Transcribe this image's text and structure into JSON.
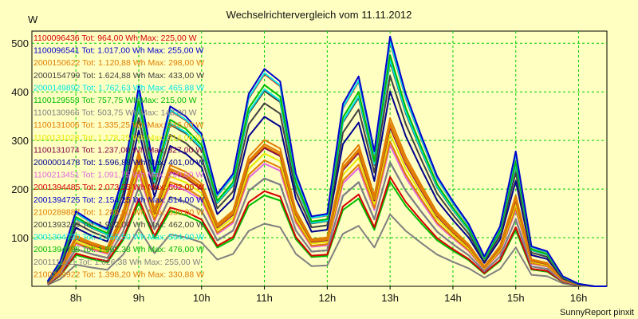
{
  "chart_data": {
    "type": "line",
    "title": "Wechselrichtervergleich vom 11.11.2012",
    "ylabel": "W",
    "footer": "SunnyReport pinxit",
    "ylim": [
      0,
      525
    ],
    "xlim": [
      7.3,
      16.45
    ],
    "xticks": [
      {
        "x": 8,
        "label": "8h"
      },
      {
        "x": 9,
        "label": "9h"
      },
      {
        "x": 10,
        "label": "10h"
      },
      {
        "x": 11,
        "label": "11h"
      },
      {
        "x": 12,
        "label": "12h"
      },
      {
        "x": 13,
        "label": "13h"
      },
      {
        "x": 14,
        "label": "14h"
      },
      {
        "x": 15,
        "label": "15h"
      },
      {
        "x": 16,
        "label": "16h"
      }
    ],
    "yticks": [
      100,
      200,
      300,
      400,
      500
    ],
    "grid": true,
    "x": [
      7.55,
      7.75,
      8.0,
      8.25,
      8.5,
      8.75,
      9.0,
      9.25,
      9.5,
      9.75,
      10.0,
      10.25,
      10.5,
      10.75,
      11.0,
      11.25,
      11.5,
      11.75,
      12.0,
      12.25,
      12.5,
      12.75,
      13.0,
      13.25,
      13.5,
      13.75,
      14.0,
      14.25,
      14.5,
      14.75,
      15.0,
      15.25,
      15.5,
      15.75,
      16.0,
      16.25,
      16.45
    ],
    "base_shape": [
      0.02,
      0.1,
      0.3,
      0.26,
      0.23,
      0.44,
      0.8,
      0.46,
      0.72,
      0.68,
      0.61,
      0.37,
      0.45,
      0.77,
      0.87,
      0.82,
      0.45,
      0.28,
      0.29,
      0.73,
      0.84,
      0.54,
      1.0,
      0.77,
      0.6,
      0.44,
      0.34,
      0.25,
      0.12,
      0.24,
      0.54,
      0.16,
      0.14,
      0.04,
      0.01,
      0.0,
      0.0
    ],
    "series": [
      {
        "name": "1100096436",
        "tot": "964,00 Wh",
        "max": "225,00 W",
        "color": "#d40000",
        "peak": 225
      },
      {
        "name": "1100096541",
        "tot": "1.017,00 Wh",
        "max": "255,00 W",
        "color": "#0000cc",
        "peak": 255
      },
      {
        "name": "2000150622",
        "tot": "1.120,88 Wh",
        "max": "298,00 W",
        "color": "#e07c00",
        "peak": 298
      },
      {
        "name": "2000154799",
        "tot": "1.624,88 Wh",
        "max": "433,00 W",
        "color": "#404040",
        "peak": 433
      },
      {
        "name": "2000149892",
        "tot": "1.762,63 Wh",
        "max": "465,88 W",
        "color": "#00e5e5",
        "peak": 466
      },
      {
        "name": "1100129553",
        "tot": "757,75 Wh",
        "max": "215,00 W",
        "color": "#00bb00",
        "peak": 215
      },
      {
        "name": "1100130966",
        "tot": "503,75 Wh",
        "max": "148,00 W",
        "color": "#808080",
        "peak": 148
      },
      {
        "name": "1100131006",
        "tot": "1.335,25 Wh",
        "max": "346,00 W",
        "color": "#e07c00",
        "peak": 346
      },
      {
        "name": "1100131028",
        "tot": "1.178,25 Wh",
        "max": "314,00 W",
        "color": "#e8e800",
        "peak": 314
      },
      {
        "name": "1100131074",
        "tot": "1.237,00 Wh",
        "max": "327,00 W",
        "color": "#800040",
        "peak": 327
      },
      {
        "name": "2000001478",
        "tot": "1.596,88 Wh",
        "max": "401,00 W",
        "color": "#000090",
        "peak": 401
      },
      {
        "name": "1100213451",
        "tot": "1.091,75 Wh",
        "max": "290,00 W",
        "color": "#e066e0",
        "peak": 290
      },
      {
        "name": "2001394485",
        "tot": "2.073,25 Wh",
        "max": "502,00 W",
        "color": "#d40000",
        "peak": 502
      },
      {
        "name": "2001394725",
        "tot": "2.154,25 Wh",
        "max": "514,00 W",
        "color": "#0000cc",
        "peak": 514
      },
      {
        "name": "2100289887",
        "tot": "1.288,00 Wh",
        "max": "336,00 W",
        "color": "#e07c00",
        "peak": 336
      },
      {
        "name": "2001393249",
        "tot": "1.902,00 Wh",
        "max": "462,00 W",
        "color": "#404040",
        "peak": 462
      },
      {
        "name": "2001394730",
        "tot": "1.956,50 Wh",
        "max": "504,00 W",
        "color": "#00e5e5",
        "peak": 504
      },
      {
        "name": "2001394796",
        "tot": "1.962,38 Wh",
        "max": "476,00 W",
        "color": "#00bb00",
        "peak": 476
      },
      {
        "name": "2001111111",
        "tot": "1.026,38 Wh",
        "max": "255,00 W",
        "color": "#808080",
        "peak": 255
      },
      {
        "name": "2100309922",
        "tot": "1.398,20 Wh",
        "max": "330,88 W",
        "color": "#e07c00",
        "peak": 331
      }
    ],
    "legend_labels": {
      "tot": "Tot:",
      "max": "Max:"
    },
    "legend_position": "inside-left"
  }
}
